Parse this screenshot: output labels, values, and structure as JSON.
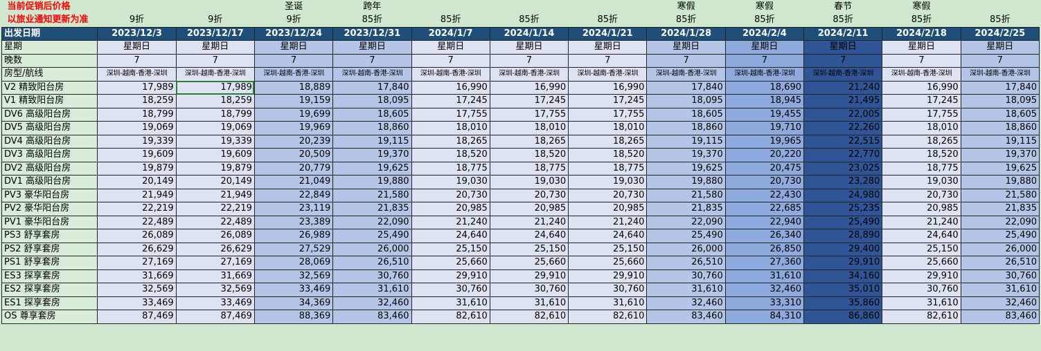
{
  "notes": {
    "line1": "当前促销后价格",
    "line2": "以旅业通知更新为准"
  },
  "holidays": [
    "",
    "",
    "圣诞",
    "跨年",
    "",
    "",
    "",
    "寒假",
    "寒假",
    "春节",
    "寒假",
    ""
  ],
  "discounts": [
    "9折",
    "9折",
    "9折",
    "85折",
    "85折",
    "85折",
    "85折",
    "85折",
    "85折",
    "85折",
    "85折",
    "85折"
  ],
  "labels": {
    "date": "出发日期",
    "weekday": "星期",
    "nights": "晚数",
    "route": "房型/航线"
  },
  "dates": [
    "2023/12/3",
    "2023/12/17",
    "2023/12/24",
    "2023/12/31",
    "2024/1/7",
    "2024/1/14",
    "2024/1/21",
    "2024/1/28",
    "2024/2/4",
    "2024/2/11",
    "2024/2/18",
    "2024/2/25"
  ],
  "weekday": "星期日",
  "nights": "7",
  "route": "深圳-越南-香港-深圳",
  "colors": {
    "header_bg": "#1f4e79",
    "col_bg": [
      "#dde3f3",
      "#dde3f3",
      "#b4c6e7",
      "#b4c6e7",
      "#dde3f3",
      "#dde3f3",
      "#dde3f3",
      "#b4c6e7",
      "#8ea9db",
      "#2f5597",
      "#dde3f3",
      "#b4c6e7"
    ],
    "col_fg": [
      "#000",
      "#000",
      "#000",
      "#000",
      "#000",
      "#000",
      "#000",
      "#000",
      "#000",
      "#000",
      "#000",
      "#000"
    ]
  },
  "rows": [
    {
      "name": "V2 精致阳台房",
      "prices": [
        "17,989",
        "17,989",
        "18,889",
        "17,840",
        "16,990",
        "16,990",
        "16,990",
        "17,840",
        "18,690",
        "21,240",
        "16,990",
        "17,840"
      ]
    },
    {
      "name": "V1 精致阳台房",
      "prices": [
        "18,259",
        "18,259",
        "19,159",
        "18,095",
        "17,245",
        "17,245",
        "17,245",
        "18,095",
        "18,945",
        "21,495",
        "17,245",
        "18,095"
      ]
    },
    {
      "name": "DV6 高级阳台房",
      "prices": [
        "18,799",
        "18,799",
        "19,699",
        "18,605",
        "17,755",
        "17,755",
        "17,755",
        "18,605",
        "19,455",
        "22,005",
        "17,755",
        "18,605"
      ]
    },
    {
      "name": "DV5 高级阳台房",
      "prices": [
        "19,069",
        "19,069",
        "19,969",
        "18,860",
        "18,010",
        "18,010",
        "18,010",
        "18,860",
        "19,710",
        "22,260",
        "18,010",
        "18,860"
      ]
    },
    {
      "name": "DV4 高级阳台房",
      "prices": [
        "19,339",
        "19,339",
        "20,239",
        "19,115",
        "18,265",
        "18,265",
        "18,265",
        "19,115",
        "19,965",
        "22,515",
        "18,265",
        "19,115"
      ]
    },
    {
      "name": "DV3 高级阳台房",
      "prices": [
        "19,609",
        "19,609",
        "20,509",
        "19,370",
        "18,520",
        "18,520",
        "18,520",
        "19,370",
        "20,220",
        "22,770",
        "18,520",
        "19,370"
      ]
    },
    {
      "name": "DV2 高级阳台房",
      "prices": [
        "19,879",
        "19,879",
        "20,779",
        "19,625",
        "18,775",
        "18,775",
        "18,775",
        "19,625",
        "20,475",
        "23,025",
        "18,775",
        "19,625"
      ]
    },
    {
      "name": "DV1 高级阳台房",
      "prices": [
        "20,149",
        "20,149",
        "21,049",
        "19,880",
        "19,030",
        "19,030",
        "19,030",
        "19,880",
        "20,730",
        "23,280",
        "19,030",
        "19,880"
      ]
    },
    {
      "name": "PV3 豪华阳台房",
      "prices": [
        "21,949",
        "21,949",
        "22,849",
        "21,580",
        "20,730",
        "20,730",
        "20,730",
        "21,580",
        "22,430",
        "24,980",
        "20,730",
        "21,580"
      ]
    },
    {
      "name": "PV2 豪华阳台房",
      "prices": [
        "22,219",
        "22,219",
        "23,119",
        "21,835",
        "20,985",
        "20,985",
        "20,985",
        "21,835",
        "22,685",
        "25,235",
        "20,985",
        "21,835"
      ]
    },
    {
      "name": "PV1 豪华阳台房",
      "prices": [
        "22,489",
        "22,489",
        "23,389",
        "22,090",
        "21,240",
        "21,240",
        "21,240",
        "22,090",
        "22,940",
        "25,490",
        "21,240",
        "22,090"
      ]
    },
    {
      "name": "PS3 舒享套房",
      "prices": [
        "26,089",
        "26,089",
        "26,989",
        "25,490",
        "24,640",
        "24,640",
        "24,640",
        "25,490",
        "26,340",
        "28,890",
        "24,640",
        "25,490"
      ]
    },
    {
      "name": "PS2 舒享套房",
      "prices": [
        "26,629",
        "26,629",
        "27,529",
        "26,000",
        "25,150",
        "25,150",
        "25,150",
        "26,000",
        "26,850",
        "29,400",
        "25,150",
        "26,000"
      ]
    },
    {
      "name": "PS1 舒享套房",
      "prices": [
        "27,169",
        "27,169",
        "28,069",
        "26,510",
        "25,660",
        "25,660",
        "25,660",
        "26,510",
        "27,360",
        "29,910",
        "25,660",
        "26,510"
      ]
    },
    {
      "name": "ES3 探享套房",
      "prices": [
        "31,669",
        "31,669",
        "32,569",
        "30,760",
        "29,910",
        "29,910",
        "29,910",
        "30,760",
        "31,610",
        "34,160",
        "29,910",
        "30,760"
      ]
    },
    {
      "name": "ES2 探享套房",
      "prices": [
        "32,569",
        "32,569",
        "33,469",
        "31,610",
        "30,760",
        "30,760",
        "30,760",
        "31,610",
        "32,460",
        "35,010",
        "30,760",
        "31,610"
      ]
    },
    {
      "name": "ES1 探享套房",
      "prices": [
        "33,469",
        "33,469",
        "34,369",
        "32,460",
        "31,610",
        "31,610",
        "31,610",
        "32,460",
        "33,310",
        "35,860",
        "31,610",
        "32,460"
      ]
    },
    {
      "name": "OS 尊享套房",
      "prices": [
        "87,469",
        "87,469",
        "88,369",
        "83,460",
        "82,610",
        "82,610",
        "82,610",
        "83,460",
        "84,310",
        "86,860",
        "82,610",
        "83,460"
      ]
    }
  ]
}
